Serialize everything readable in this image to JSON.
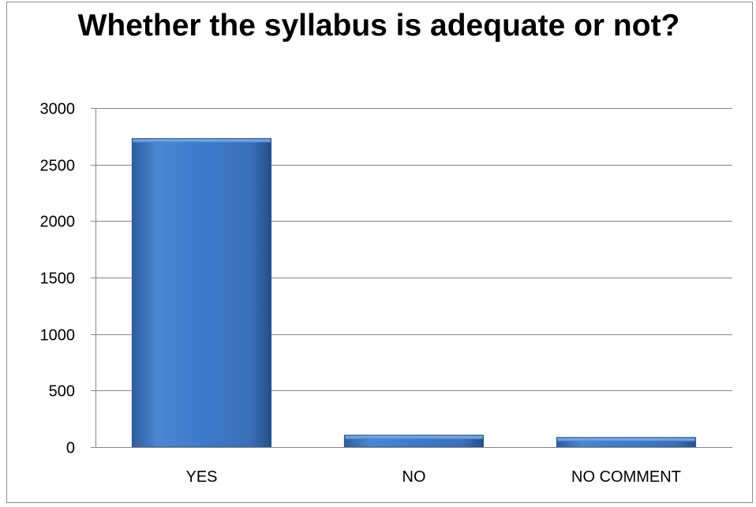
{
  "chart_data": {
    "type": "bar",
    "title": "Whether the syllabus is adequate or not?",
    "categories": [
      "YES",
      "NO",
      "NO COMMENT"
    ],
    "values": [
      2730,
      105,
      85
    ],
    "ylim": [
      0,
      3000
    ],
    "yticks": [
      0,
      500,
      1000,
      1500,
      2000,
      2500,
      3000
    ],
    "grid": true,
    "legend": "none",
    "bar_color": "#3f7fd0"
  }
}
